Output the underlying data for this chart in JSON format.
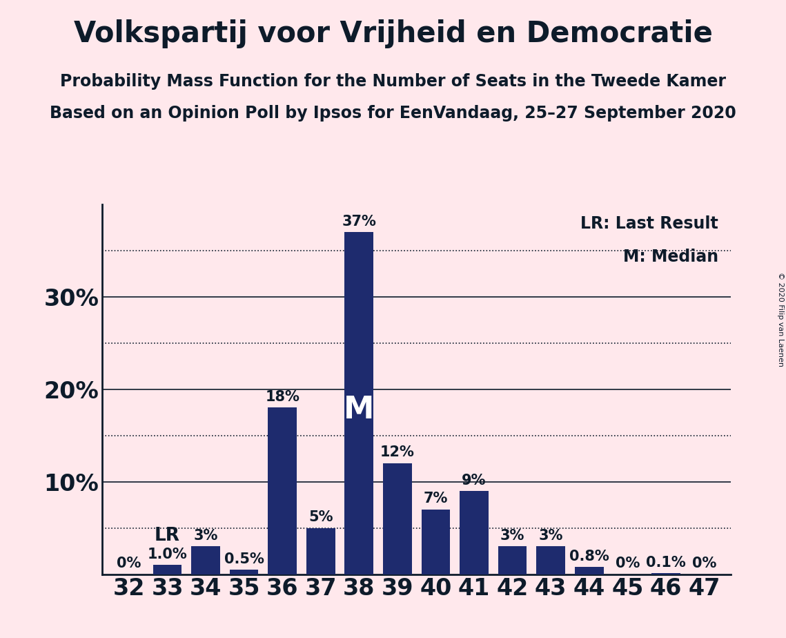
{
  "title": "Volkspartij voor Vrijheid en Democratie",
  "subtitle1": "Probability Mass Function for the Number of Seats in the Tweede Kamer",
  "subtitle2": "Based on an Opinion Poll by Ipsos for EenVandaag, 25–27 September 2020",
  "copyright": "© 2020 Filip van Laenen",
  "categories": [
    32,
    33,
    34,
    35,
    36,
    37,
    38,
    39,
    40,
    41,
    42,
    43,
    44,
    45,
    46,
    47
  ],
  "values": [
    0.0,
    1.0,
    3.0,
    0.5,
    18.0,
    5.0,
    37.0,
    12.0,
    7.0,
    9.0,
    3.0,
    3.0,
    0.8,
    0.0,
    0.1,
    0.0
  ],
  "bar_color": "#1E2B6E",
  "background_color": "#FFE8EC",
  "axis_color": "#0D1B2A",
  "text_color": "#0D1B2A",
  "yticks": [
    10,
    20,
    30
  ],
  "ytick_labels": [
    "10%",
    "20%",
    "30%"
  ],
  "solid_lines": [
    10,
    20,
    30
  ],
  "dotted_lines": [
    5,
    15,
    25,
    35
  ],
  "lr_seat": 33,
  "median_seat": 38,
  "bar_labels": [
    "0%",
    "1.0%",
    "3%",
    "0.5%",
    "18%",
    "5%",
    "37%",
    "12%",
    "7%",
    "9%",
    "3%",
    "3%",
    "0.8%",
    "0%",
    "0.1%",
    "0%"
  ],
  "title_fontsize": 30,
  "subtitle_fontsize": 17,
  "ytick_fontsize": 24,
  "xtick_fontsize": 24,
  "bar_label_fontsize": 15,
  "legend_fontsize": 17,
  "ylim": [
    0,
    40
  ]
}
